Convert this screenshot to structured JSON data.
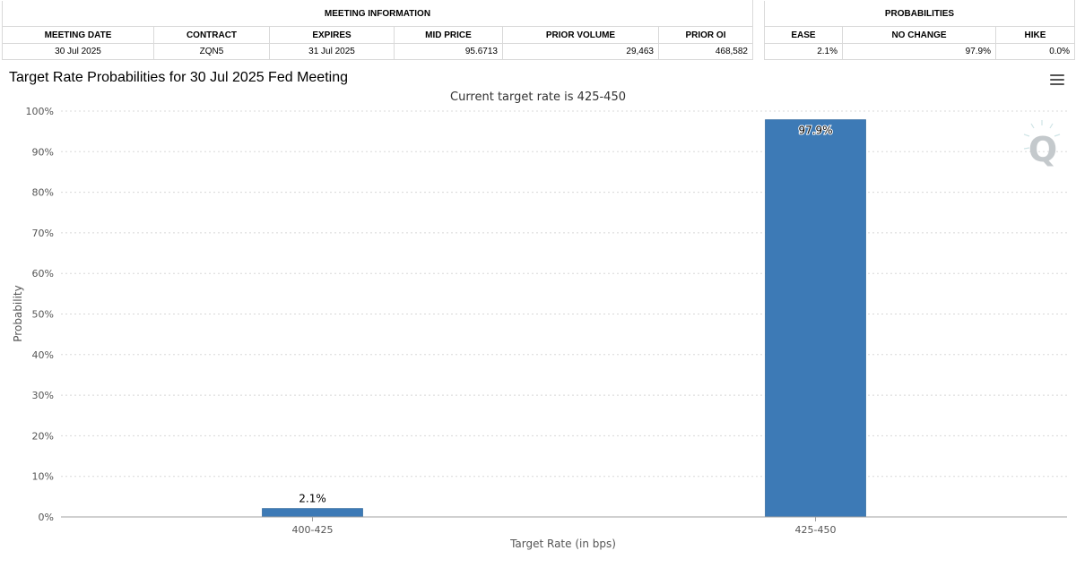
{
  "meeting_info": {
    "section_title": "MEETING INFORMATION",
    "headers": [
      "MEETING DATE",
      "CONTRACT",
      "EXPIRES",
      "MID PRICE",
      "PRIOR VOLUME",
      "PRIOR OI"
    ],
    "values": [
      "30 Jul 2025",
      "ZQN5",
      "31 Jul 2025",
      "95.6713",
      "29,463",
      "468,582"
    ]
  },
  "probabilities": {
    "section_title": "PROBABILITIES",
    "headers": [
      "EASE",
      "NO CHANGE",
      "HIKE"
    ],
    "values": [
      "2.1%",
      "97.9%",
      "0.0%"
    ]
  },
  "menu_icon": "hamburger-menu-icon",
  "watermark_icon": "q-logo-icon",
  "colors": {
    "bar": "#3d7ab6",
    "grid": "#d8d8d8",
    "axis": "#a0a0a0"
  },
  "chart_data": {
    "type": "bar",
    "title": "Target Rate Probabilities for 30 Jul 2025 Fed Meeting",
    "subtitle": "Current target rate is 425-450",
    "xlabel": "Target Rate (in bps)",
    "ylabel": "Probability",
    "categories": [
      "400-425",
      "425-450"
    ],
    "values": [
      2.1,
      97.9
    ],
    "data_labels": [
      "2.1%",
      "97.9%"
    ],
    "ylim": [
      0,
      100
    ],
    "yticks": [
      0,
      10,
      20,
      30,
      40,
      50,
      60,
      70,
      80,
      90,
      100
    ],
    "ytick_labels": [
      "0%",
      "10%",
      "20%",
      "30%",
      "40%",
      "50%",
      "60%",
      "70%",
      "80%",
      "90%",
      "100%"
    ],
    "grid": true,
    "legend": "none"
  }
}
